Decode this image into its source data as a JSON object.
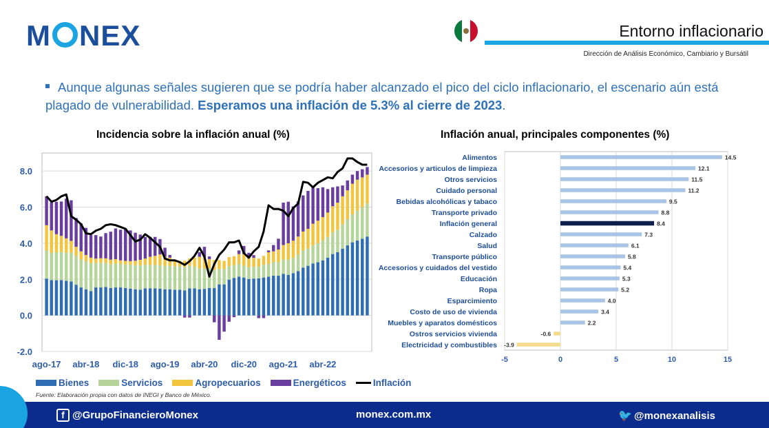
{
  "header": {
    "logo": "MONEX",
    "title": "Entorno inflacionario",
    "subtitle": "Dirección de Análisis Económico, Cambiario y Bursátil",
    "colors": {
      "navy": "#0b2c8c",
      "cyan": "#1aa4e1",
      "logo": "#1b4f9c"
    }
  },
  "bullet": {
    "text": "Aunque algunas señales sugieren que se podría haber alcanzado el pico del ciclo inflacionario, el escenario aún está plagado de vulnerabilidad. ",
    "bold": "Esperamos una inflación de 5.3% al cierre de 2023",
    "end": "."
  },
  "chart_data": [
    {
      "type": "bar",
      "stacked": true,
      "title": "Incidencia sobre la inflación anual (%)",
      "ylim": [
        -2.0,
        9.0
      ],
      "yticks": [
        "8.0",
        "6.0",
        "4.0",
        "2.0",
        "0.0",
        "-2.0"
      ],
      "ytick_values": [
        8,
        6,
        4,
        2,
        0,
        -2
      ],
      "xtick_labels": [
        "ago-17",
        "abr-18",
        "dic-18",
        "ago-19",
        "abr-20",
        "dic-20",
        "ago-21",
        "abr-22"
      ],
      "xtick_index": [
        0,
        8,
        16,
        24,
        32,
        40,
        48,
        56
      ],
      "grid": true,
      "legend_position": "bottom",
      "series": [
        {
          "name": "Bienes",
          "color": "#2e6db4",
          "values": [
            2.04,
            1.96,
            1.95,
            1.96,
            1.92,
            1.88,
            1.7,
            1.55,
            1.45,
            1.35,
            1.55,
            1.55,
            1.58,
            1.52,
            1.55,
            1.55,
            1.52,
            1.48,
            1.45,
            1.42,
            1.5,
            1.5,
            1.5,
            1.48,
            1.45,
            1.45,
            1.42,
            1.42,
            1.38,
            1.5,
            1.5,
            1.45,
            1.47,
            1.52,
            1.52,
            1.72,
            1.72,
            1.98,
            2.08,
            2.15,
            2.1,
            2.02,
            2.04,
            2.05,
            2.1,
            2.15,
            2.2,
            2.2,
            2.3,
            2.25,
            2.34,
            2.45,
            2.65,
            2.75,
            2.88,
            2.95,
            3.05,
            3.2,
            3.4,
            3.5,
            3.7,
            3.88,
            4.05,
            4.15,
            4.25,
            4.37
          ]
        },
        {
          "name": "Servicios",
          "color": "#b5d59a",
          "values": [
            1.56,
            1.5,
            1.55,
            1.55,
            1.55,
            1.6,
            1.6,
            1.55,
            1.55,
            1.55,
            1.35,
            1.37,
            1.33,
            1.32,
            1.32,
            1.3,
            1.3,
            1.33,
            1.33,
            1.36,
            1.3,
            1.3,
            1.3,
            1.3,
            1.3,
            1.3,
            1.3,
            1.3,
            1.3,
            1.26,
            1.2,
            1.15,
            1.13,
            1.1,
            1.0,
            0.85,
            0.85,
            0.75,
            0.7,
            0.7,
            0.65,
            0.65,
            0.65,
            0.65,
            0.7,
            0.7,
            0.75,
            0.75,
            0.8,
            0.85,
            0.85,
            0.92,
            0.95,
            0.95,
            1.0,
            1.05,
            1.1,
            1.15,
            1.2,
            1.25,
            1.35,
            1.45,
            1.55,
            1.65,
            1.75,
            1.83
          ]
        },
        {
          "name": "Agropecuarios",
          "color": "#f3c53f",
          "values": [
            1.4,
            1.25,
            1.0,
            0.9,
            0.8,
            0.65,
            0.5,
            0.45,
            0.35,
            0.3,
            0.25,
            0.25,
            0.25,
            0.25,
            0.25,
            0.2,
            0.2,
            0.2,
            0.25,
            0.3,
            0.35,
            0.45,
            0.5,
            0.6,
            0.5,
            0.45,
            0.3,
            0.3,
            0.35,
            0.4,
            0.5,
            0.65,
            0.65,
            0.5,
            0.55,
            0.5,
            0.45,
            0.5,
            0.5,
            0.55,
            0.65,
            0.6,
            0.5,
            0.45,
            0.5,
            0.65,
            0.6,
            0.7,
            0.8,
            0.9,
            0.95,
            1.0,
            1.05,
            1.1,
            1.2,
            1.25,
            1.3,
            1.35,
            1.45,
            1.5,
            1.55,
            1.6,
            1.7,
            1.72,
            1.65,
            1.6
          ]
        },
        {
          "name": "Energéticos",
          "color": "#6a3ea1",
          "values": [
            1.6,
            1.55,
            1.8,
            1.9,
            2.2,
            2.25,
            1.6,
            1.55,
            1.5,
            1.25,
            1.3,
            1.2,
            1.4,
            1.55,
            1.7,
            1.7,
            1.8,
            1.7,
            1.55,
            1.4,
            1.2,
            1.1,
            1.05,
            0.85,
            0.5,
            0.15,
            0.05,
            0.0,
            -0.12,
            -0.12,
            0.0,
            0.25,
            0.55,
            0.15,
            -0.38,
            -1.35,
            -0.9,
            -0.35,
            -0.1,
            0.2,
            0.45,
            0.2,
            0.15,
            -0.15,
            -0.15,
            0.1,
            0.35,
            0.6,
            2.35,
            2.3,
            1.9,
            1.95,
            2.0,
            2.1,
            2.0,
            1.8,
            1.65,
            1.3,
            1.05,
            0.9,
            0.6,
            0.55,
            0.5,
            0.48,
            0.45,
            0.42
          ]
        }
      ],
      "line": {
        "name": "Inflación",
        "color": "#000000",
        "values": [
          6.6,
          6.3,
          6.4,
          6.6,
          6.7,
          5.5,
          5.3,
          5.05,
          4.55,
          4.5,
          4.7,
          4.8,
          5.0,
          5.05,
          5.0,
          4.9,
          4.8,
          4.45,
          4.1,
          4.2,
          4.5,
          4.3,
          4.05,
          3.8,
          3.15,
          3.05,
          3.05,
          2.95,
          2.8,
          3.0,
          3.3,
          3.75,
          3.25,
          2.15,
          2.85,
          3.35,
          3.65,
          4.05,
          4.05,
          4.15,
          3.45,
          3.2,
          3.55,
          3.8,
          4.65,
          6.1,
          5.9,
          5.9,
          5.8,
          5.5,
          5.95,
          6.2,
          7.4,
          7.35,
          7.1,
          7.35,
          7.5,
          7.65,
          7.6,
          7.95,
          8.15,
          8.7,
          8.7,
          8.5,
          8.35,
          8.35
        ]
      }
    },
    {
      "type": "bar",
      "orientation": "horizontal",
      "title": "Inflación anual, principales componentes (%)",
      "xlim": [
        -5,
        15
      ],
      "xticks": [
        "-5",
        "0",
        "5",
        "10",
        "15"
      ],
      "xtick_values": [
        -5,
        0,
        5,
        10,
        15
      ],
      "grid": true,
      "categories": [
        "Alimentos",
        "Accesorios y articulos de limpieza",
        "Otros servicios",
        "Cuidado personal",
        "Bebidas alcohólicas y tabaco",
        "Transporte privado",
        "Inflación general",
        "Calzado",
        "Salud",
        "Transporte público",
        "Accesorios y cuidados del vestido",
        "Educación",
        "Ropa",
        "Esparcimiento",
        "Costo de uso de vivienda",
        "Muebles y aparatos domésticos",
        "Ostros servicios vivienda",
        "Electricidad y combustibles"
      ],
      "values": [
        14.5,
        12.1,
        11.5,
        11.2,
        9.5,
        8.8,
        8.4,
        7.3,
        6.1,
        5.8,
        5.4,
        5.3,
        5.2,
        4.0,
        3.4,
        2.2,
        -0.6,
        -3.9
      ],
      "labels": [
        "14.5",
        "12.1",
        "11.5",
        "11.2",
        "9.5",
        "8.8",
        "8.4",
        "7.3",
        "6.1",
        "5.8",
        "5.4",
        "5.3",
        "5.2",
        "4.0",
        "3.4",
        "2.2",
        "-0.6",
        "-3.9"
      ],
      "colors": {
        "default": "#a9c4e6",
        "highlight": "#0f1f4b",
        "negative": "#f5dc8c"
      },
      "highlight_index": 6
    }
  ],
  "legend": {
    "bienes": "Bienes",
    "servicios": "Servicios",
    "agropecuarios": "Agropecuarios",
    "energeticos": "Energéticos",
    "inflacion": "Inflación"
  },
  "source": "Fuente: Elaboración propia con datos de INEGI y Banco de México.",
  "footer": {
    "facebook": "@GrupoFinancieroMonex",
    "web": "monex.com.mx",
    "twitter": "@monexanalisis"
  }
}
